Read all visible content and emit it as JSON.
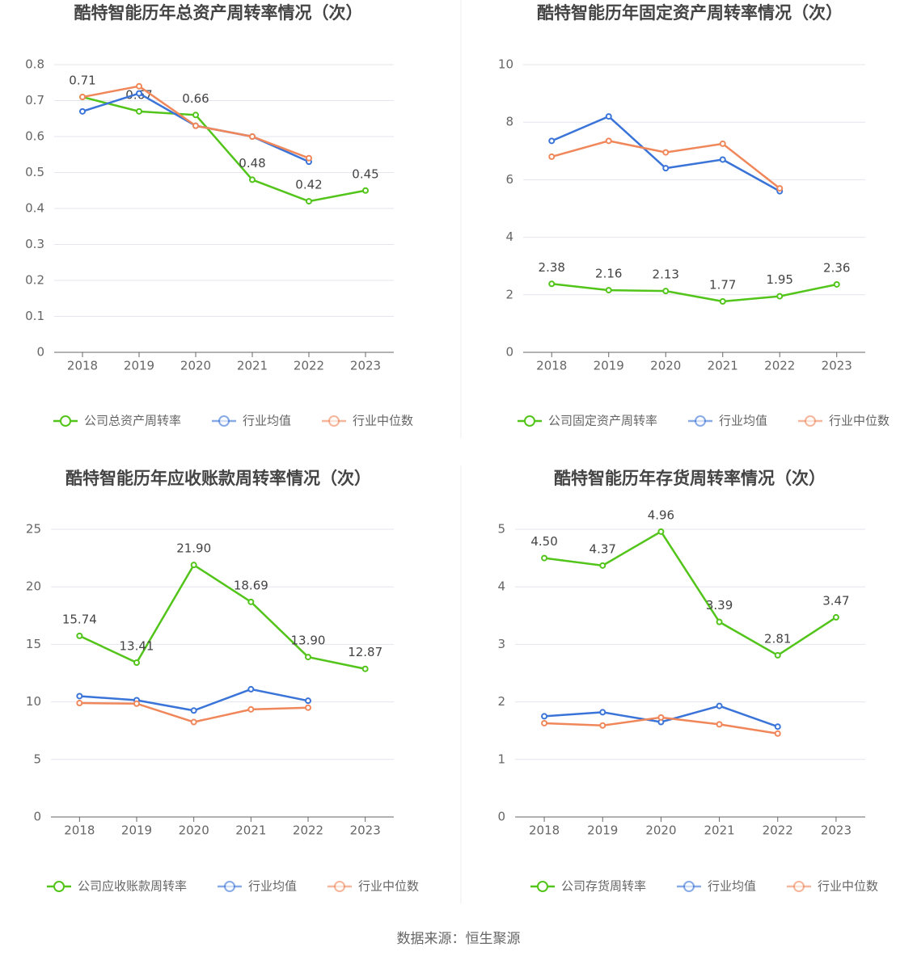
{
  "chart_data": [
    {
      "type": "line",
      "title": "酷特智能历年总资产周转率情况（次）",
      "categories": [
        "2018",
        "2019",
        "2020",
        "2021",
        "2022",
        "2023"
      ],
      "series": [
        {
          "name": "公司总资产周转率",
          "color": "#52c41a",
          "values": [
            0.71,
            0.67,
            0.66,
            0.48,
            0.42,
            0.45
          ]
        },
        {
          "name": "行业均值",
          "color": "#3a74d8",
          "values": [
            0.67,
            0.72,
            0.63,
            0.6,
            0.53,
            null
          ]
        },
        {
          "name": "行业中位数",
          "color": "#f0875a",
          "values": [
            0.71,
            0.74,
            0.63,
            0.6,
            0.54,
            null
          ]
        }
      ],
      "ylim": [
        0,
        0.8
      ],
      "yticks": [
        0,
        0.1,
        0.2,
        0.3,
        0.4,
        0.5,
        0.6,
        0.7,
        0.8
      ],
      "grid": true
    },
    {
      "type": "line",
      "title": "酷特智能历年固定资产周转率情况（次）",
      "categories": [
        "2018",
        "2019",
        "2020",
        "2021",
        "2022",
        "2023"
      ],
      "series": [
        {
          "name": "公司固定资产周转率",
          "color": "#52c41a",
          "values": [
            2.38,
            2.16,
            2.13,
            1.77,
            1.95,
            2.36
          ]
        },
        {
          "name": "行业均值",
          "color": "#3a74d8",
          "values": [
            7.35,
            8.2,
            6.4,
            6.7,
            5.6,
            null
          ]
        },
        {
          "name": "行业中位数",
          "color": "#f0875a",
          "values": [
            6.8,
            7.35,
            6.95,
            7.25,
            5.7,
            null
          ]
        }
      ],
      "ylim": [
        0,
        10
      ],
      "yticks": [
        0,
        2,
        4,
        6,
        8,
        10
      ],
      "grid": true
    },
    {
      "type": "line",
      "title": "酷特智能历年应收账款周转率情况（次）",
      "categories": [
        "2018",
        "2019",
        "2020",
        "2021",
        "2022",
        "2023"
      ],
      "series": [
        {
          "name": "公司应收账款周转率",
          "color": "#52c41a",
          "values": [
            15.74,
            13.41,
            21.9,
            18.69,
            13.9,
            12.87
          ],
          "value_labels": [
            "15.74",
            "13.41",
            "21.90",
            "18.69",
            "13.90",
            "12.87"
          ]
        },
        {
          "name": "行业均值",
          "color": "#3a74d8",
          "values": [
            10.5,
            10.15,
            9.25,
            11.1,
            10.1,
            null
          ]
        },
        {
          "name": "行业中位数",
          "color": "#f0875a",
          "values": [
            9.9,
            9.85,
            8.25,
            9.35,
            9.5,
            null
          ]
        }
      ],
      "ylim": [
        0,
        25
      ],
      "yticks": [
        0,
        5,
        10,
        15,
        20,
        25
      ],
      "grid": true
    },
    {
      "type": "line",
      "title": "酷特智能历年存货周转率情况（次）",
      "categories": [
        "2018",
        "2019",
        "2020",
        "2021",
        "2022",
        "2023"
      ],
      "series": [
        {
          "name": "公司存货周转率",
          "color": "#52c41a",
          "values": [
            4.5,
            4.37,
            4.96,
            3.39,
            2.81,
            3.47
          ],
          "value_labels": [
            "4.50",
            "4.37",
            "4.96",
            "3.39",
            "2.81",
            "3.47"
          ]
        },
        {
          "name": "行业均值",
          "color": "#3a74d8",
          "values": [
            1.75,
            1.82,
            1.65,
            1.93,
            1.57,
            null
          ]
        },
        {
          "name": "行业中位数",
          "color": "#f0875a",
          "values": [
            1.63,
            1.59,
            1.73,
            1.61,
            1.45,
            null
          ]
        }
      ],
      "ylim": [
        0,
        5
      ],
      "yticks": [
        0,
        1,
        2,
        3,
        4,
        5
      ],
      "grid": true
    }
  ],
  "source": "数据来源：恒生聚源"
}
